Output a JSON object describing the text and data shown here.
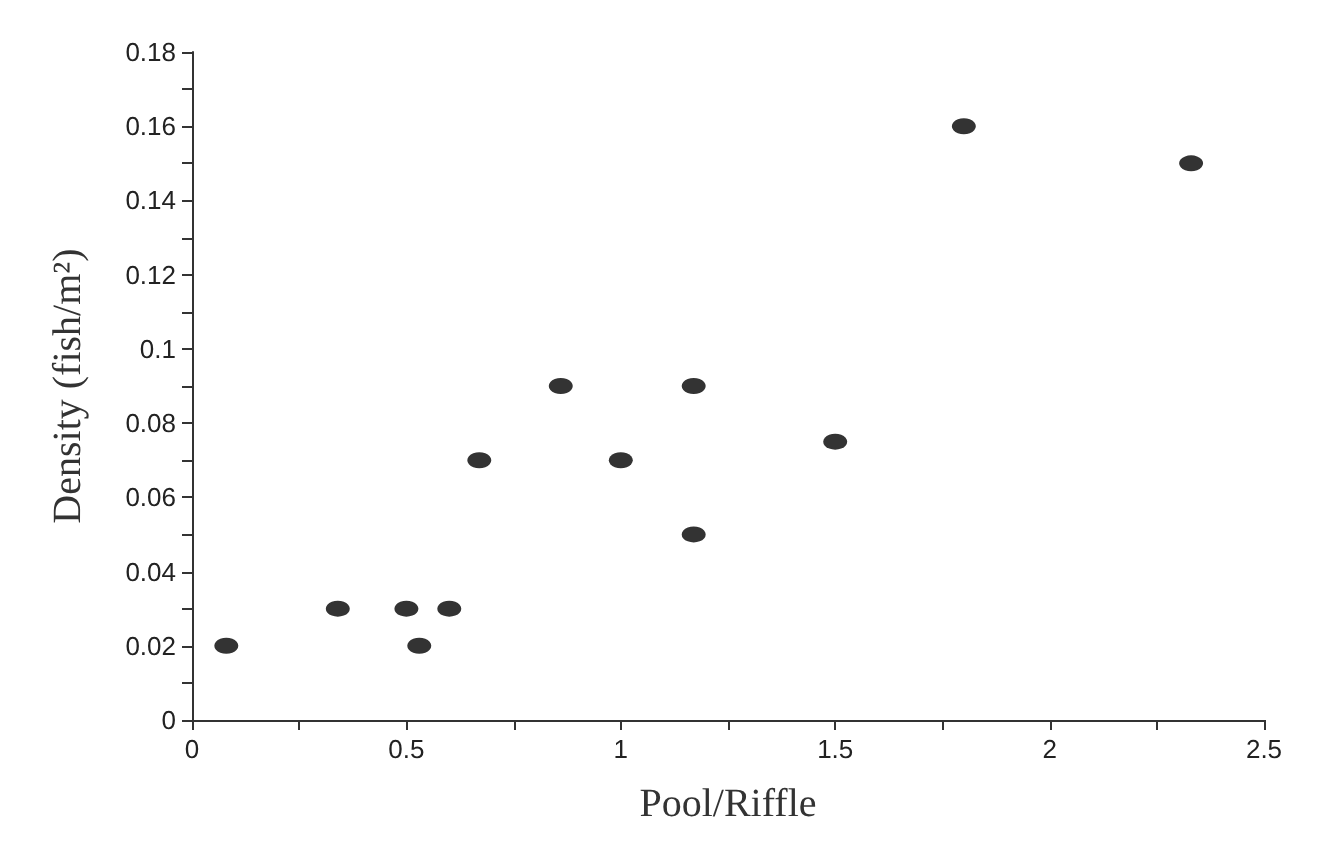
{
  "chart_data": {
    "type": "scatter",
    "xlabel": "Pool/Riffle",
    "ylabel": "Density (fish/m²)",
    "x": [
      0.08,
      0.34,
      0.5,
      0.53,
      0.6,
      0.67,
      0.86,
      1.0,
      1.17,
      1.17,
      1.5,
      1.8,
      2.33
    ],
    "values": [
      0.02,
      0.03,
      0.03,
      0.02,
      0.03,
      0.07,
      0.09,
      0.07,
      0.09,
      0.05,
      0.075,
      0.16,
      0.15
    ],
    "color": "#000000",
    "marker": "circle",
    "xlim": [
      0,
      2.5
    ],
    "xticks": [
      0,
      {
        "value": 0.25,
        "label": null
      },
      0.5,
      {
        "value": 0.75,
        "label": null
      },
      1,
      {
        "value": 1.25,
        "label": null
      },
      1.5,
      {
        "value": 1.75,
        "label": null
      },
      2,
      {
        "value": 2.25,
        "label": null
      },
      2.5
    ],
    "ylim": [
      0,
      0.18
    ],
    "yticks": [
      0,
      {
        "value": 0.01,
        "label": null
      },
      0.02,
      {
        "value": 0.03,
        "label": null
      },
      0.04,
      {
        "value": 0.05,
        "label": null
      },
      0.06,
      {
        "value": 0.07,
        "label": null
      },
      0.08,
      {
        "value": 0.09,
        "label": null
      },
      0.1,
      {
        "value": 0.11,
        "label": null
      },
      0.12,
      {
        "value": 0.13,
        "label": null
      },
      0.14,
      {
        "value": 0.15,
        "label": null
      },
      0.16,
      {
        "value": 0.17,
        "label": null
      },
      0.18
    ]
  }
}
